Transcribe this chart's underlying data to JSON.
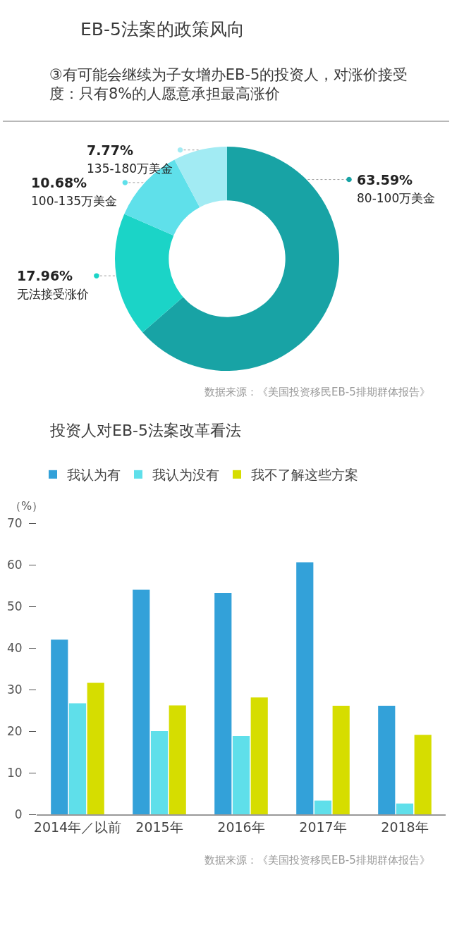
{
  "chart_data": [
    {
      "type": "donut",
      "title": "EB-5法案的政策风向",
      "subtitle": "③有可能会继续为子女增办EB-5的投资人，对涨价接受度：只有8%的人愿意承担最高涨价",
      "categories": [
        "80-100万美金",
        "无法接受涨价",
        "100-135万美金",
        "135-180万美金"
      ],
      "values": [
        63.59,
        17.96,
        10.68,
        7.77
      ],
      "value_labels": [
        "63.59%",
        "17.96%",
        "10.68%",
        "7.77%"
      ],
      "colors": [
        "#18a3a5",
        "#1bd4c7",
        "#5fe0ea",
        "#a2ebf3"
      ],
      "legend": "left",
      "annotations": [
        "数据来源：《美国投资移民EB-5排期群体报告》"
      ]
    },
    {
      "type": "bar",
      "title": "投资人对EB-5法案改革看法",
      "ylabel": "（%）",
      "categories": [
        "2014年／以前",
        "2015年",
        "2016年",
        "2017年",
        "2018年"
      ],
      "series": [
        {
          "name": "我认为有",
          "color": "#33a1d9",
          "values": [
            42.0,
            54.0,
            53.2,
            60.6,
            26.1
          ]
        },
        {
          "name": "我认为没有",
          "color": "#5fdfea",
          "values": [
            26.7,
            20.0,
            18.8,
            3.3,
            2.6
          ]
        },
        {
          "name": "我不了解这些方案",
          "color": "#d6dd00",
          "values": [
            31.6,
            26.2,
            28.1,
            26.1,
            19.1
          ]
        }
      ],
      "ylim": [
        0,
        70
      ],
      "yticks": [
        0,
        10,
        20,
        30,
        40,
        50,
        60,
        70
      ],
      "legend": "top",
      "grid": false,
      "annotations": [
        "数据来源：《美国投资移民EB-5排期群体报告》"
      ]
    }
  ]
}
